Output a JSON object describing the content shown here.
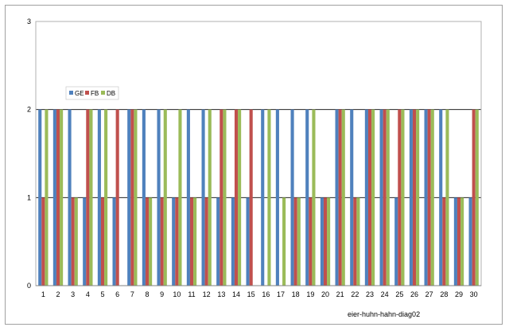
{
  "chart_data": {
    "type": "bar",
    "title": "",
    "caption": "eier-huhn-hahn-diag02",
    "xlabel": "",
    "ylabel": "",
    "ylim": [
      0,
      3
    ],
    "yticks": [
      0,
      1,
      2,
      3
    ],
    "grid": true,
    "legend_position": "top-left",
    "categories": [
      "1",
      "2",
      "3",
      "4",
      "5",
      "6",
      "7",
      "8",
      "9",
      "10",
      "11",
      "12",
      "13",
      "14",
      "15",
      "16",
      "17",
      "18",
      "19",
      "20",
      "21",
      "22",
      "23",
      "24",
      "25",
      "26",
      "27",
      "28",
      "29",
      "30"
    ],
    "series": [
      {
        "name": "GE",
        "color": "#4f81bd",
        "values": [
          2,
          2,
          2,
          1,
          2,
          1,
          2,
          2,
          2,
          1,
          2,
          2,
          1,
          1,
          1,
          2,
          2,
          2,
          2,
          1,
          2,
          2,
          2,
          2,
          1,
          2,
          2,
          2,
          1,
          1
        ]
      },
      {
        "name": "FB",
        "color": "#c0504d",
        "values": [
          1,
          2,
          1,
          2,
          1,
          2,
          2,
          1,
          1,
          1,
          1,
          1,
          2,
          2,
          2,
          0,
          0,
          1,
          1,
          1,
          2,
          1,
          2,
          2,
          2,
          2,
          2,
          1,
          1,
          2
        ]
      },
      {
        "name": "DB",
        "color": "#9bbb59",
        "values": [
          2,
          2,
          1,
          2,
          2,
          0,
          2,
          1,
          2,
          2,
          1,
          2,
          2,
          2,
          0,
          2,
          1,
          1,
          2,
          1,
          2,
          1,
          2,
          2,
          2,
          2,
          2,
          2,
          1,
          2
        ]
      }
    ]
  }
}
